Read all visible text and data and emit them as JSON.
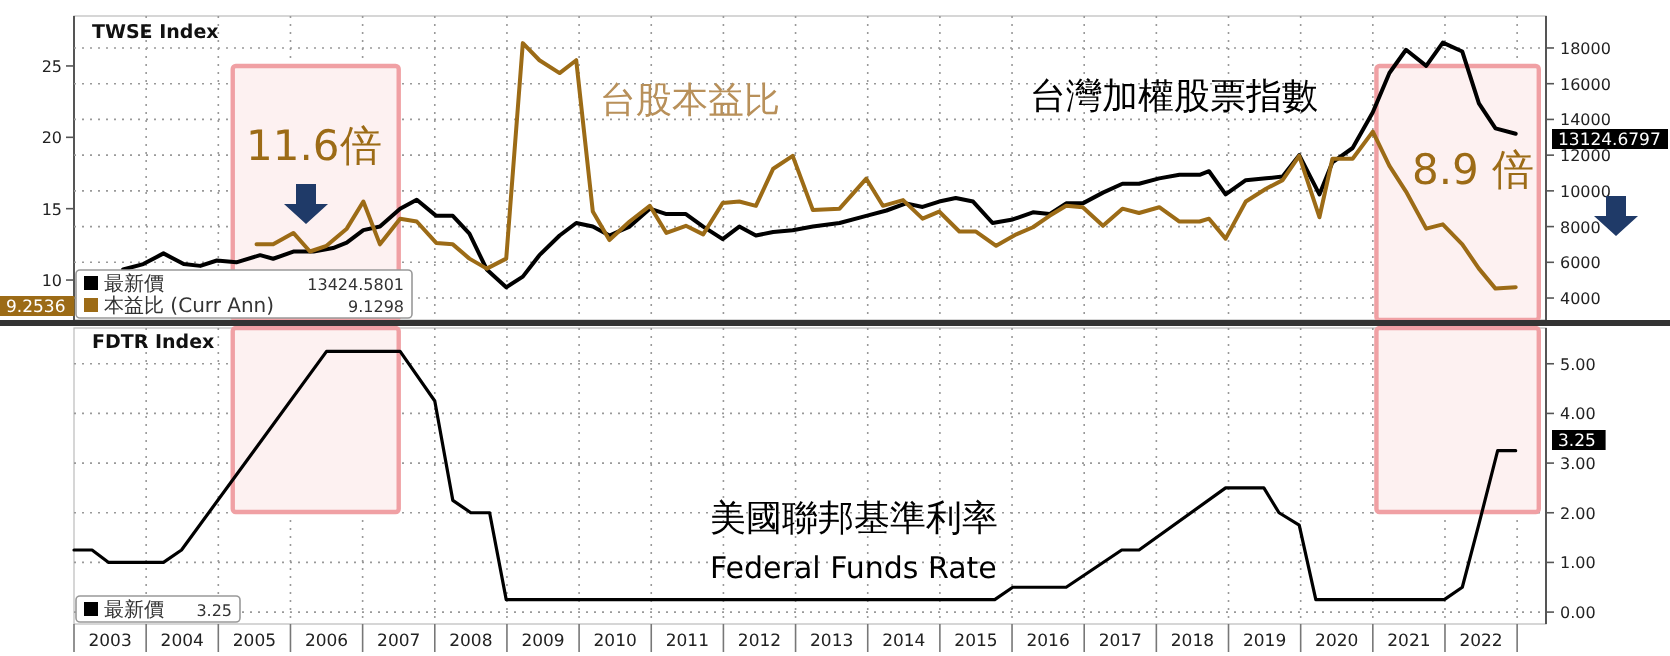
{
  "chart_data": [
    {
      "type": "line",
      "title": "TWSE Index",
      "xlim": [
        2003,
        2023.4
      ],
      "ylim": [
        7.2,
        28.5
      ],
      "yticks": [
        10,
        15,
        20,
        25
      ],
      "y2lim": [
        2770,
        19790
      ],
      "y2ticks": [
        4000,
        6000,
        8000,
        10000,
        12000,
        14000,
        16000,
        18000
      ],
      "grid": true,
      "legend": "bottom left",
      "tick_labels": "y",
      "line_style": "solid",
      "marker": "none",
      "xticks": [
        {
          "value": 2003,
          "label": null
        },
        {
          "value": 2004,
          "label": null
        },
        {
          "value": 2005,
          "label": null
        },
        {
          "value": 2006,
          "label": null
        },
        {
          "value": 2007,
          "label": null
        },
        {
          "value": 2008,
          "label": null
        },
        {
          "value": 2009,
          "label": null
        },
        {
          "value": 2010,
          "label": null
        },
        {
          "value": 2011,
          "label": null
        },
        {
          "value": 2012,
          "label": null
        },
        {
          "value": 2013,
          "label": null
        },
        {
          "value": 2014,
          "label": null
        },
        {
          "value": 2015,
          "label": null
        },
        {
          "value": 2016,
          "label": null
        },
        {
          "value": 2017,
          "label": null
        },
        {
          "value": 2018,
          "label": null
        },
        {
          "value": 2019,
          "label": null
        },
        {
          "value": 2020,
          "label": null
        },
        {
          "value": 2021,
          "label": null
        },
        {
          "value": 2022,
          "label": null
        },
        {
          "value": 2023,
          "label": null
        }
      ],
      "series": [
        {
          "name": "最新價",
          "color": "#000000",
          "axis": "y2",
          "x": [
            2003.68,
            2003.96,
            2004.24,
            2004.52,
            2004.75,
            2004.98,
            2005.25,
            2005.58,
            2005.76,
            2006.04,
            2006.32,
            2006.59,
            2006.78,
            2007.01,
            2007.24,
            2007.52,
            2007.75,
            2008.02,
            2008.25,
            2008.48,
            2008.72,
            2008.99,
            2009.22,
            2009.45,
            2009.73,
            2009.96,
            2010.19,
            2010.42,
            2010.7,
            2010.98,
            2011.21,
            2011.48,
            2011.72,
            2011.99,
            2012.22,
            2012.45,
            2012.69,
            2012.96,
            2013.24,
            2013.61,
            2013.98,
            2014.26,
            2014.53,
            2014.76,
            2014.99,
            2015.22,
            2015.46,
            2015.73,
            2016.01,
            2016.29,
            2016.52,
            2016.75,
            2016.98,
            2017.26,
            2017.53,
            2017.76,
            2018.04,
            2018.32,
            2018.6,
            2018.73,
            2018.96,
            2019.24,
            2019.52,
            2019.75,
            2019.98,
            2020.26,
            2020.44,
            2020.72,
            2021.0,
            2021.23,
            2021.46,
            2021.74,
            2021.97,
            2022.24,
            2022.47,
            2022.7,
            2022.98
          ],
          "values": [
            5600,
            5900,
            6500,
            5900,
            5800,
            6100,
            6000,
            6400,
            6200,
            6600,
            6600,
            6800,
            7100,
            7800,
            8000,
            9000,
            9500,
            8600,
            8600,
            7600,
            5600,
            4600,
            5200,
            6400,
            7500,
            8200,
            8000,
            7500,
            8000,
            9000,
            8700,
            8700,
            8000,
            7300,
            8000,
            7500,
            7700,
            7800,
            8000,
            8200,
            8600,
            8900,
            9300,
            9100,
            9400,
            9600,
            9400,
            8200,
            8400,
            8800,
            8700,
            9300,
            9300,
            9900,
            10400,
            10400,
            10700,
            10900,
            10900,
            11100,
            9800,
            10600,
            10700,
            10800,
            12000,
            9800,
            11600,
            12400,
            14400,
            16600,
            17900,
            17000,
            18300,
            17800,
            14900,
            13500,
            13200
          ]
        },
        {
          "name": "本益比 (Curr Ann)",
          "color": "#9c6b16",
          "x": [
            2005.53,
            2005.76,
            2006.04,
            2006.27,
            2006.5,
            2006.78,
            2007.01,
            2007.24,
            2007.52,
            2007.75,
            2008.02,
            2008.25,
            2008.48,
            2008.72,
            2008.99,
            2009.22,
            2009.45,
            2009.73,
            2009.96,
            2010.19,
            2010.42,
            2010.7,
            2010.98,
            2011.21,
            2011.48,
            2011.72,
            2011.99,
            2012.22,
            2012.45,
            2012.69,
            2012.96,
            2013.24,
            2013.61,
            2013.98,
            2014.21,
            2014.49,
            2014.76,
            2014.99,
            2015.27,
            2015.5,
            2015.78,
            2016.06,
            2016.29,
            2016.52,
            2016.75,
            2016.98,
            2017.26,
            2017.53,
            2017.76,
            2018.04,
            2018.32,
            2018.6,
            2018.73,
            2018.96,
            2019.24,
            2019.52,
            2019.75,
            2019.98,
            2020.26,
            2020.44,
            2020.72,
            2021.0,
            2021.23,
            2021.46,
            2021.74,
            2021.97,
            2022.24,
            2022.47,
            2022.7,
            2022.98
          ],
          "values": [
            12.5,
            12.5,
            13.3,
            12.0,
            12.4,
            13.6,
            15.5,
            12.5,
            14.3,
            14.1,
            12.6,
            12.5,
            11.5,
            10.8,
            11.5,
            26.6,
            25.4,
            24.5,
            25.4,
            14.8,
            12.8,
            14.1,
            15.2,
            13.3,
            13.8,
            13.2,
            15.4,
            15.5,
            15.2,
            17.8,
            18.7,
            14.9,
            15.0,
            17.1,
            15.2,
            15.6,
            14.3,
            14.8,
            13.4,
            13.4,
            12.4,
            13.2,
            13.7,
            14.5,
            15.2,
            15.1,
            13.8,
            15.0,
            14.7,
            15.1,
            14.1,
            14.1,
            14.3,
            12.9,
            15.5,
            16.4,
            17.0,
            18.7,
            14.4,
            18.5,
            18.5,
            20.4,
            18.0,
            16.2,
            13.6,
            13.9,
            12.5,
            10.8,
            9.4,
            9.5
          ]
        }
      ],
      "bands": [
        {
          "axis": "x",
          "from": 2005.2,
          "to": 2007.5,
          "color": "#f0a0a4"
        },
        {
          "axis": "x",
          "from": 2021.05,
          "to": 2023.3,
          "color": "#f0a0a4"
        }
      ],
      "annotations": [
        "台股本益比",
        "台灣加權股票指數",
        "11.6倍",
        "8.9 倍",
        "13424.5801",
        "9.1298",
        "9.2536",
        "13124.6797"
      ]
    },
    {
      "type": "line",
      "title": "FDTR Index",
      "xlim": [
        2003,
        2023.4
      ],
      "ylim": [
        -0.24,
        5.72
      ],
      "yticks": [
        {
          "value": 0,
          "label": "0.00"
        },
        {
          "value": 1,
          "label": "1.00"
        },
        {
          "value": 2,
          "label": "2.00"
        },
        {
          "value": 3,
          "label": "3.00"
        },
        {
          "value": 4,
          "label": "4.00"
        },
        {
          "value": 5,
          "label": "5.00"
        }
      ],
      "grid": true,
      "legend": "bottom left",
      "line_style": "solid",
      "marker": "none",
      "xticks": [
        {
          "value": 2003,
          "label": null
        },
        {
          "value": 2003.5,
          "label": "2003"
        },
        {
          "value": 2004,
          "label": null
        },
        {
          "value": 2004.5,
          "label": "2004"
        },
        {
          "value": 2005,
          "label": null
        },
        {
          "value": 2005.5,
          "label": "2005"
        },
        {
          "value": 2006,
          "label": null
        },
        {
          "value": 2006.5,
          "label": "2006"
        },
        {
          "value": 2007,
          "label": null
        },
        {
          "value": 2007.5,
          "label": "2007"
        },
        {
          "value": 2008,
          "label": null
        },
        {
          "value": 2008.5,
          "label": "2008"
        },
        {
          "value": 2009,
          "label": null
        },
        {
          "value": 2009.5,
          "label": "2009"
        },
        {
          "value": 2010,
          "label": null
        },
        {
          "value": 2010.5,
          "label": "2010"
        },
        {
          "value": 2011,
          "label": null
        },
        {
          "value": 2011.5,
          "label": "2011"
        },
        {
          "value": 2012,
          "label": null
        },
        {
          "value": 2012.5,
          "label": "2012"
        },
        {
          "value": 2013,
          "label": null
        },
        {
          "value": 2013.5,
          "label": "2013"
        },
        {
          "value": 2014,
          "label": null
        },
        {
          "value": 2014.5,
          "label": "2014"
        },
        {
          "value": 2015,
          "label": null
        },
        {
          "value": 2015.5,
          "label": "2015"
        },
        {
          "value": 2016,
          "label": null
        },
        {
          "value": 2016.5,
          "label": "2016"
        },
        {
          "value": 2017,
          "label": null
        },
        {
          "value": 2017.5,
          "label": "2017"
        },
        {
          "value": 2018,
          "label": null
        },
        {
          "value": 2018.5,
          "label": "2018"
        },
        {
          "value": 2019,
          "label": null
        },
        {
          "value": 2019.5,
          "label": "2019"
        },
        {
          "value": 2020,
          "label": null
        },
        {
          "value": 2020.5,
          "label": "2020"
        },
        {
          "value": 2021,
          "label": null
        },
        {
          "value": 2021.5,
          "label": "2021"
        },
        {
          "value": 2022,
          "label": null
        },
        {
          "value": 2022.5,
          "label": "2022"
        },
        {
          "value": 2023,
          "label": null
        }
      ],
      "series": [
        {
          "name": "最新價",
          "color": "#000000",
          "x": [
            2003.0,
            2003.25,
            2003.48,
            2004.24,
            2004.49,
            2006.5,
            2007.52,
            2008.0,
            2008.25,
            2008.5,
            2008.76,
            2008.99,
            2015.76,
            2016.01,
            2016.75,
            2017.52,
            2017.76,
            2018.96,
            2019.49,
            2019.7,
            2019.98,
            2020.21,
            2021.99,
            2022.24,
            2022.47,
            2022.73,
            2022.98
          ],
          "values": [
            1.25,
            1.25,
            1.0,
            1.0,
            1.25,
            5.25,
            5.25,
            4.25,
            2.25,
            2.0,
            2.0,
            0.25,
            0.25,
            0.5,
            0.5,
            1.25,
            1.25,
            2.5,
            2.5,
            2.0,
            1.75,
            0.25,
            0.25,
            0.5,
            1.77,
            3.25,
            3.25
          ]
        }
      ],
      "bands": [
        {
          "axis": "x",
          "from": 2005.2,
          "to": 2007.5,
          "color": "#f0a0a4"
        },
        {
          "axis": "x",
          "from": 2021.05,
          "to": 2023.3,
          "color": "#f0a0a4"
        }
      ],
      "annotations": [
        "美國聯邦基準利率",
        "Federal Funds Rate",
        "3.25",
        "3.25"
      ]
    }
  ]
}
